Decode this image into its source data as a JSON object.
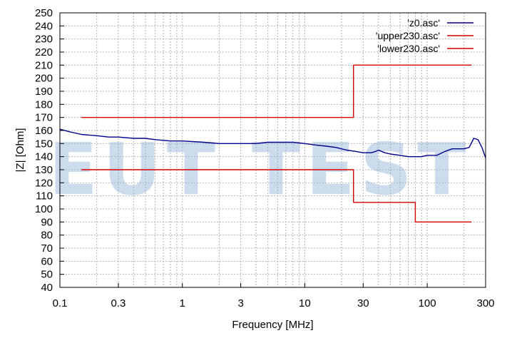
{
  "chart_data": {
    "type": "line",
    "xlabel": "Frequency [MHz]",
    "ylabel": "|Z| [Ohm]",
    "xscale": "log",
    "xlim": [
      0.1,
      300
    ],
    "ylim": [
      40,
      250
    ],
    "grid": true,
    "legend_position": "top-right",
    "x_ticks": [
      0.1,
      0.3,
      1,
      3,
      10,
      30,
      100,
      300
    ],
    "x_tick_labels": [
      "0.1",
      "0.3",
      "1",
      "3",
      "10",
      "30",
      "100",
      "300"
    ],
    "y_ticks": [
      40,
      50,
      60,
      70,
      80,
      90,
      100,
      110,
      120,
      130,
      140,
      150,
      160,
      170,
      180,
      190,
      200,
      210,
      220,
      230,
      240,
      250
    ],
    "y_tick_labels": [
      "40",
      "50",
      "60",
      "70",
      "80",
      "90",
      "100",
      "110",
      "120",
      "130",
      "140",
      "150",
      "160",
      "170",
      "180",
      "190",
      "200",
      "210",
      "220",
      "230",
      "240",
      "250"
    ],
    "series": [
      {
        "name": "'z0.asc'",
        "color": "#00008b",
        "x": [
          0.1,
          0.12,
          0.15,
          0.2,
          0.25,
          0.3,
          0.4,
          0.5,
          0.6,
          0.8,
          1,
          1.5,
          2,
          3,
          4,
          5,
          6,
          8,
          10,
          12,
          15,
          18,
          22,
          26,
          30,
          35,
          38,
          40,
          45,
          50,
          60,
          70,
          80,
          90,
          100,
          120,
          140,
          160,
          180,
          200,
          220,
          240,
          260,
          280,
          300
        ],
        "y": [
          161,
          159,
          157,
          156,
          155,
          155,
          154,
          154,
          153,
          152,
          152,
          151,
          150,
          150,
          150,
          151,
          151,
          151,
          150,
          149,
          148,
          147,
          145,
          144,
          143,
          143,
          144,
          145,
          143,
          142,
          141,
          140,
          140,
          140,
          141,
          141,
          144,
          146,
          146,
          146,
          147,
          154,
          153,
          147,
          139
        ]
      },
      {
        "name": "'upper230.asc'",
        "color": "#d40000",
        "x": [
          0.15,
          25,
          25,
          230
        ],
        "y": [
          170,
          170,
          210,
          210
        ]
      },
      {
        "name": "'lower230.asc'",
        "color": "#d40000",
        "x": [
          0.15,
          25,
          25,
          80,
          80,
          230
        ],
        "y": [
          130,
          130,
          105,
          105,
          90,
          90
        ]
      }
    ]
  },
  "watermark": "EUT TEST"
}
